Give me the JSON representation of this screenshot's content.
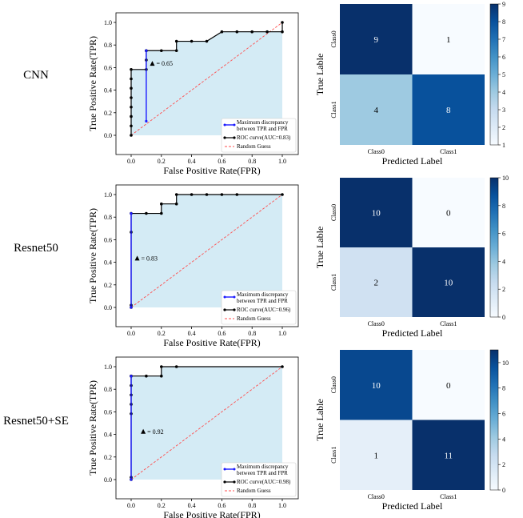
{
  "chart_data": [
    {
      "type": "line",
      "model": "CNN",
      "xlabel": "False Positive Rate(FPR)",
      "ylabel": "True Positive Rate(TPR)",
      "xlim": [
        0.0,
        1.0
      ],
      "ylim": [
        0.0,
        1.0
      ],
      "xticks": [
        "0.0",
        "0.2",
        "0.4",
        "0.6",
        "0.8",
        "1.0"
      ],
      "yticks": [
        "0.0",
        "0.2",
        "0.4",
        "0.6",
        "0.8",
        "1.0"
      ],
      "roc_x": [
        0,
        0,
        0,
        0,
        0,
        0,
        0,
        0,
        0.1,
        0.1,
        0.1,
        0.1,
        0.2,
        0.3,
        0.3,
        0.4,
        0.5,
        0.6,
        0.7,
        0.8,
        0.9,
        1.0,
        1.0
      ],
      "roc_y": [
        0,
        0.083,
        0.167,
        0.25,
        0.333,
        0.417,
        0.5,
        0.583,
        0.583,
        0.667,
        0.75,
        0.75,
        0.75,
        0.75,
        0.833,
        0.833,
        0.833,
        0.917,
        0.917,
        0.917,
        0.917,
        0.917,
        1.0
      ],
      "discrepancy": {
        "x": 0.1,
        "y_low": 0.125,
        "y_high": 0.75,
        "label": "= 0.65",
        "label_x": 0.14,
        "label_y": 0.63
      },
      "legend": [
        "Maximum discrepancy between TPR and FPR",
        "ROC curve(AUC=0.83)",
        "Random Guess"
      ],
      "confusion": {
        "xlabel": "Predicted Label",
        "ylabel": "True Lable",
        "classes": [
          "Class0",
          "Class1"
        ],
        "matrix": [
          [
            9,
            1
          ],
          [
            4,
            8
          ]
        ],
        "colorbar_ticks": [
          1,
          2,
          3,
          4,
          5,
          6,
          7,
          8,
          9
        ],
        "vmin": 1,
        "vmax": 9
      }
    },
    {
      "type": "line",
      "model": "Resnet50",
      "xlabel": "False Positive Rate(FPR)",
      "ylabel": "True Positive Rate(TPR)",
      "xlim": [
        0.0,
        1.0
      ],
      "ylim": [
        0.0,
        1.0
      ],
      "xticks": [
        "0.0",
        "0.2",
        "0.4",
        "0.6",
        "0.8",
        "1.0"
      ],
      "yticks": [
        "0.0",
        "0.2",
        "0.4",
        "0.6",
        "0.8",
        "1.0"
      ],
      "roc_x": [
        0,
        0,
        0,
        0,
        0.1,
        0.2,
        0.2,
        0.3,
        0.3,
        0.4,
        0.5,
        0.6,
        0.7,
        1.0
      ],
      "roc_y": [
        0,
        0.02,
        0.667,
        0.833,
        0.833,
        0.833,
        0.917,
        0.917,
        1.0,
        1.0,
        1.0,
        1.0,
        1.0,
        1.0
      ],
      "discrepancy": {
        "x": 0.0,
        "y_low": 0.0,
        "y_high": 0.833,
        "label": "= 0.83",
        "label_x": 0.04,
        "label_y": 0.43
      },
      "legend": [
        "Maximum discrepancy between TPR and FPR",
        "ROC curve(AUC=0.96)",
        "Random Guess"
      ],
      "confusion": {
        "xlabel": "Predicted Label",
        "ylabel": "True Lable",
        "classes": [
          "Class0",
          "Class1"
        ],
        "matrix": [
          [
            10,
            0
          ],
          [
            2,
            10
          ]
        ],
        "colorbar_ticks": [
          0,
          2,
          4,
          6,
          8,
          10
        ],
        "vmin": 0,
        "vmax": 10
      }
    },
    {
      "type": "line",
      "model": "Resnet50+SE",
      "xlabel": "False Positive Rate(FPR)",
      "ylabel": "True Positive Rate(TPR)",
      "xlim": [
        0.0,
        1.0
      ],
      "ylim": [
        0.0,
        1.0
      ],
      "xticks": [
        "0.0",
        "0.2",
        "0.4",
        "0.6",
        "0.8",
        "1.0"
      ],
      "yticks": [
        "0.0",
        "0.2",
        "0.4",
        "0.6",
        "0.8",
        "1.0"
      ],
      "roc_x": [
        0,
        0,
        0,
        0,
        0,
        0,
        0,
        0,
        0.1,
        0.2,
        0.2,
        0.3,
        1.0
      ],
      "roc_y": [
        0,
        0.02,
        0.583,
        0.667,
        0.75,
        0.833,
        0.917,
        0.917,
        0.917,
        0.917,
        1.0,
        1.0,
        1.0
      ],
      "discrepancy": {
        "x": 0.0,
        "y_low": 0.0,
        "y_high": 0.917,
        "label": "= 0.92",
        "label_x": 0.08,
        "label_y": 0.42
      },
      "legend": [
        "Maximum discrepancy between TPR and FPR",
        "ROC curve(AUC=0.98)",
        "Random Guess"
      ],
      "confusion": {
        "xlabel": "Predicted Label",
        "ylabel": "True Lable",
        "classes": [
          "Class0",
          "Class1"
        ],
        "matrix": [
          [
            10,
            0
          ],
          [
            1,
            11
          ]
        ],
        "colorbar_ticks": [
          0,
          2,
          4,
          6,
          8,
          10
        ],
        "vmin": 0,
        "vmax": 11
      }
    }
  ]
}
